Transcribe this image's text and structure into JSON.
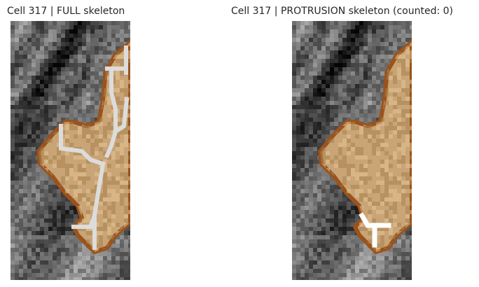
{
  "panels": [
    {
      "title": "Cell 317 | FULL skeleton"
    },
    {
      "title": "Cell 317 | PROTRUSION skeleton (counted: 0)"
    }
  ],
  "colors": {
    "background": "#ffffff",
    "cell_fill": "#c9a477",
    "cell_border": "#9a531c",
    "skeleton": "#dcdcdc",
    "protrusion_skeleton": "#ffffff"
  }
}
